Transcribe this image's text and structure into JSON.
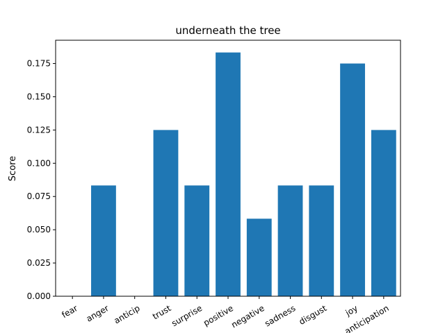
{
  "chart_data": {
    "type": "bar",
    "title": "underneath the tree",
    "xlabel": "",
    "ylabel": "Score",
    "categories": [
      "fear",
      "anger",
      "anticip",
      "trust",
      "surprise",
      "positive",
      "negative",
      "sadness",
      "disgust",
      "joy",
      "anticipation"
    ],
    "values": [
      0.0,
      0.0833,
      0.0,
      0.125,
      0.0833,
      0.1833,
      0.0583,
      0.0833,
      0.0833,
      0.175,
      0.125
    ],
    "ylim": [
      0,
      0.1925
    ],
    "yticks": [
      "0.000",
      "0.025",
      "0.050",
      "0.075",
      "0.100",
      "0.125",
      "0.150",
      "0.175"
    ],
    "bar_color": "#1f77b4",
    "grid": false,
    "legend": "none"
  }
}
